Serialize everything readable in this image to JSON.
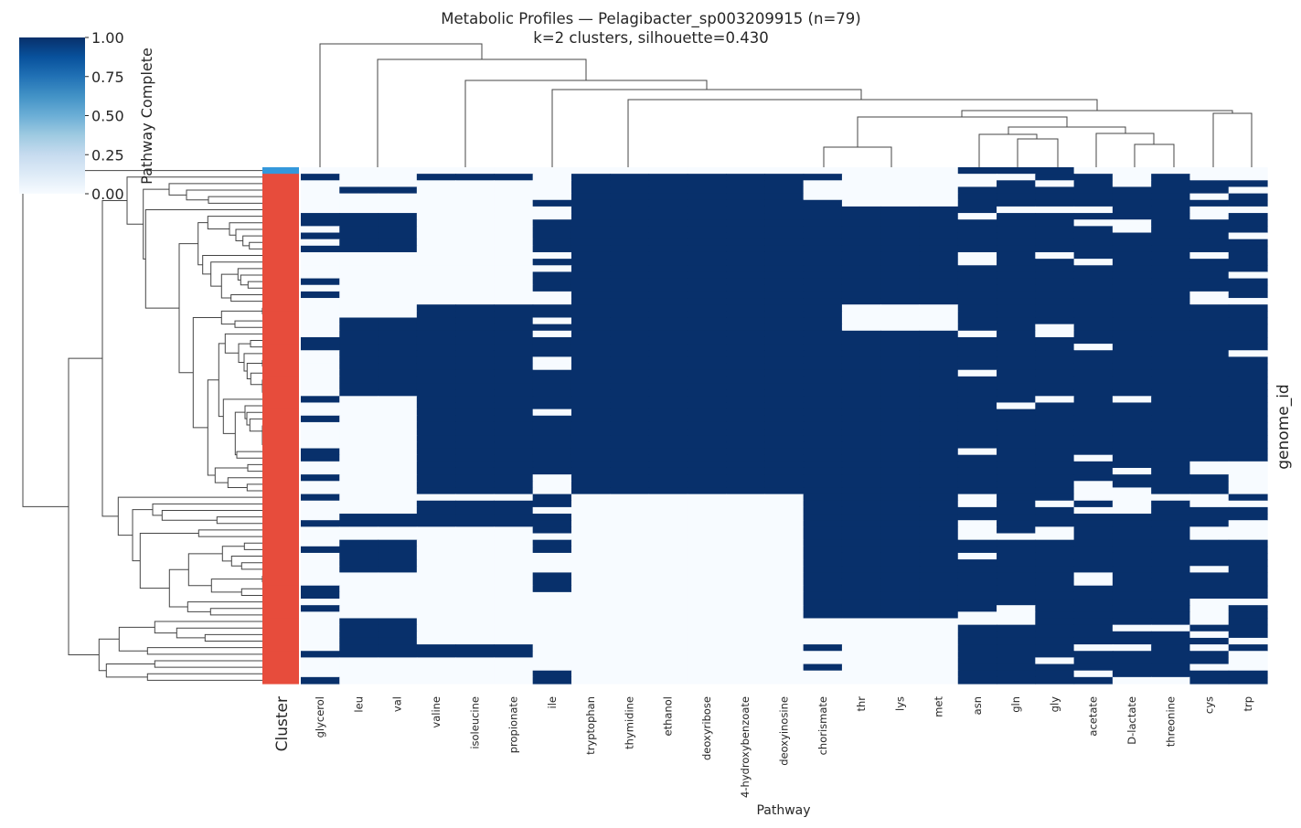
{
  "title": "Metabolic Profiles — Pelagibacter_sp003209915 (n=79)",
  "subtitle": "k=2 clusters, silhouette=0.430",
  "chart_data": {
    "type": "heatmap",
    "xlabel": "Pathway",
    "ylabel": "genome_id",
    "cluster_label": "Cluster",
    "columns": [
      "glycerol",
      "leu",
      "val",
      "valine",
      "isoleucine",
      "propionate",
      "ile",
      "tryptophan",
      "thymidine",
      "ethanol",
      "deoxyribose",
      "4-hydroxybenzoate",
      "deoxyinosine",
      "chorismate",
      "thr",
      "lys",
      "met",
      "asn",
      "gln",
      "gly",
      "acetate",
      "D-lactate",
      "threonine",
      "cys",
      "trp"
    ],
    "matrix": [
      "0000000000000000011100000",
      "1001110111111100000110100",
      "0000000111111000001010111",
      "0110000111111000011111110",
      "0000000111111000011111101",
      "0000001111111100011111111",
      "0000000111111111110001100",
      "1110000111111111101111101",
      "1110001111111111111100111",
      "0110001111111111111110111",
      "1110001111111111111111110",
      "0110001111111111111111111",
      "1110001111111111111111111",
      "0000000111111111101011101",
      "0000001111111111101101111",
      "0000000111111111111111111",
      "0000001111111111111111110",
      "1000001111111111111111111",
      "0000001111111111111111111",
      "1000000111111111111111101",
      "0000000111111111111111100",
      "0001111111111100011111111",
      "0001111111111100011111111",
      "0111110111111100011111111",
      "0111111111111100011011111",
      "0111110111111111101011111",
      "1111111111111111111111111",
      "1111111111111111111101111",
      "0111111111111111111111110",
      "0111110111111111111111111",
      "0111110111111111111111111",
      "0111111111111111101111111",
      "0111111111111111111111111",
      "0111111111111111111111111",
      "0111111111111111111111111",
      "1001111111111111111010111",
      "0001111111111111110111111",
      "0001110111111111111111111",
      "1001111111111111111111111",
      "0001111111111111111111111",
      "0001111111111111111111111",
      "0001111111111111111111111",
      "0001111111111111111111111",
      "1001111111111111101111111",
      "1001111111111111111101111",
      "0001111111111111111111100",
      "0001111111111111111110100",
      "1001110111111111111111110",
      "0001110111111111111101110",
      "0001110111111111111100110",
      "1000001000000111101100001",
      "0001111000000111101010100",
      "0001110000000111111100111",
      "0111111000000111111111111",
      "1111111000000111101111110",
      "0000001000000111101011100",
      "0000000000000111100011100",
      "0110001000000111111111111",
      "1110001000000111111111111",
      "0110000000000111101111111",
      "0110000000000111111111111",
      "0110000000000111111111101",
      "0000001000000111111101111",
      "0000001000000111111101111",
      "1000001000000111111111111",
      "1000000000000111111111111",
      "0000000000000111111111100",
      "1000000000000111110111101",
      "0000000000000111100111101",
      "0110000000000000000111101",
      "0110000000000000011110011",
      "0110000000000000011111101",
      "0110000000000000011111110",
      "0111110000000100011100101",
      "1111110000000000011111110",
      "0000000000000000011011110",
      "0000000000000100011111100",
      "0000001000000000011101111",
      "1000001000000000011110011"
    ],
    "row_clusters": [
      0,
      1,
      1,
      1,
      1,
      1,
      1,
      1,
      1,
      1,
      1,
      1,
      1,
      1,
      1,
      1,
      1,
      1,
      1,
      1,
      1,
      1,
      1,
      1,
      1,
      1,
      1,
      1,
      1,
      1,
      1,
      1,
      1,
      1,
      1,
      1,
      1,
      1,
      1,
      1,
      1,
      1,
      1,
      1,
      1,
      1,
      1,
      1,
      1,
      1,
      1,
      1,
      1,
      1,
      1,
      1,
      1,
      1,
      1,
      1,
      1,
      1,
      1,
      1,
      1,
      1,
      1,
      1,
      1,
      1,
      1,
      1,
      1,
      1,
      1,
      1,
      1,
      1,
      1
    ],
    "cluster_colors": [
      "#3498db",
      "#e74c3c"
    ],
    "value_range": [
      0,
      1
    ],
    "cmap": "Blues",
    "color_low": "#f7fbff",
    "color_high": "#08306b",
    "colorbar": {
      "label": "Pathway Complete",
      "ticks": [
        "1.00",
        "0.75",
        "0.50",
        "0.25",
        "0.00"
      ]
    }
  }
}
